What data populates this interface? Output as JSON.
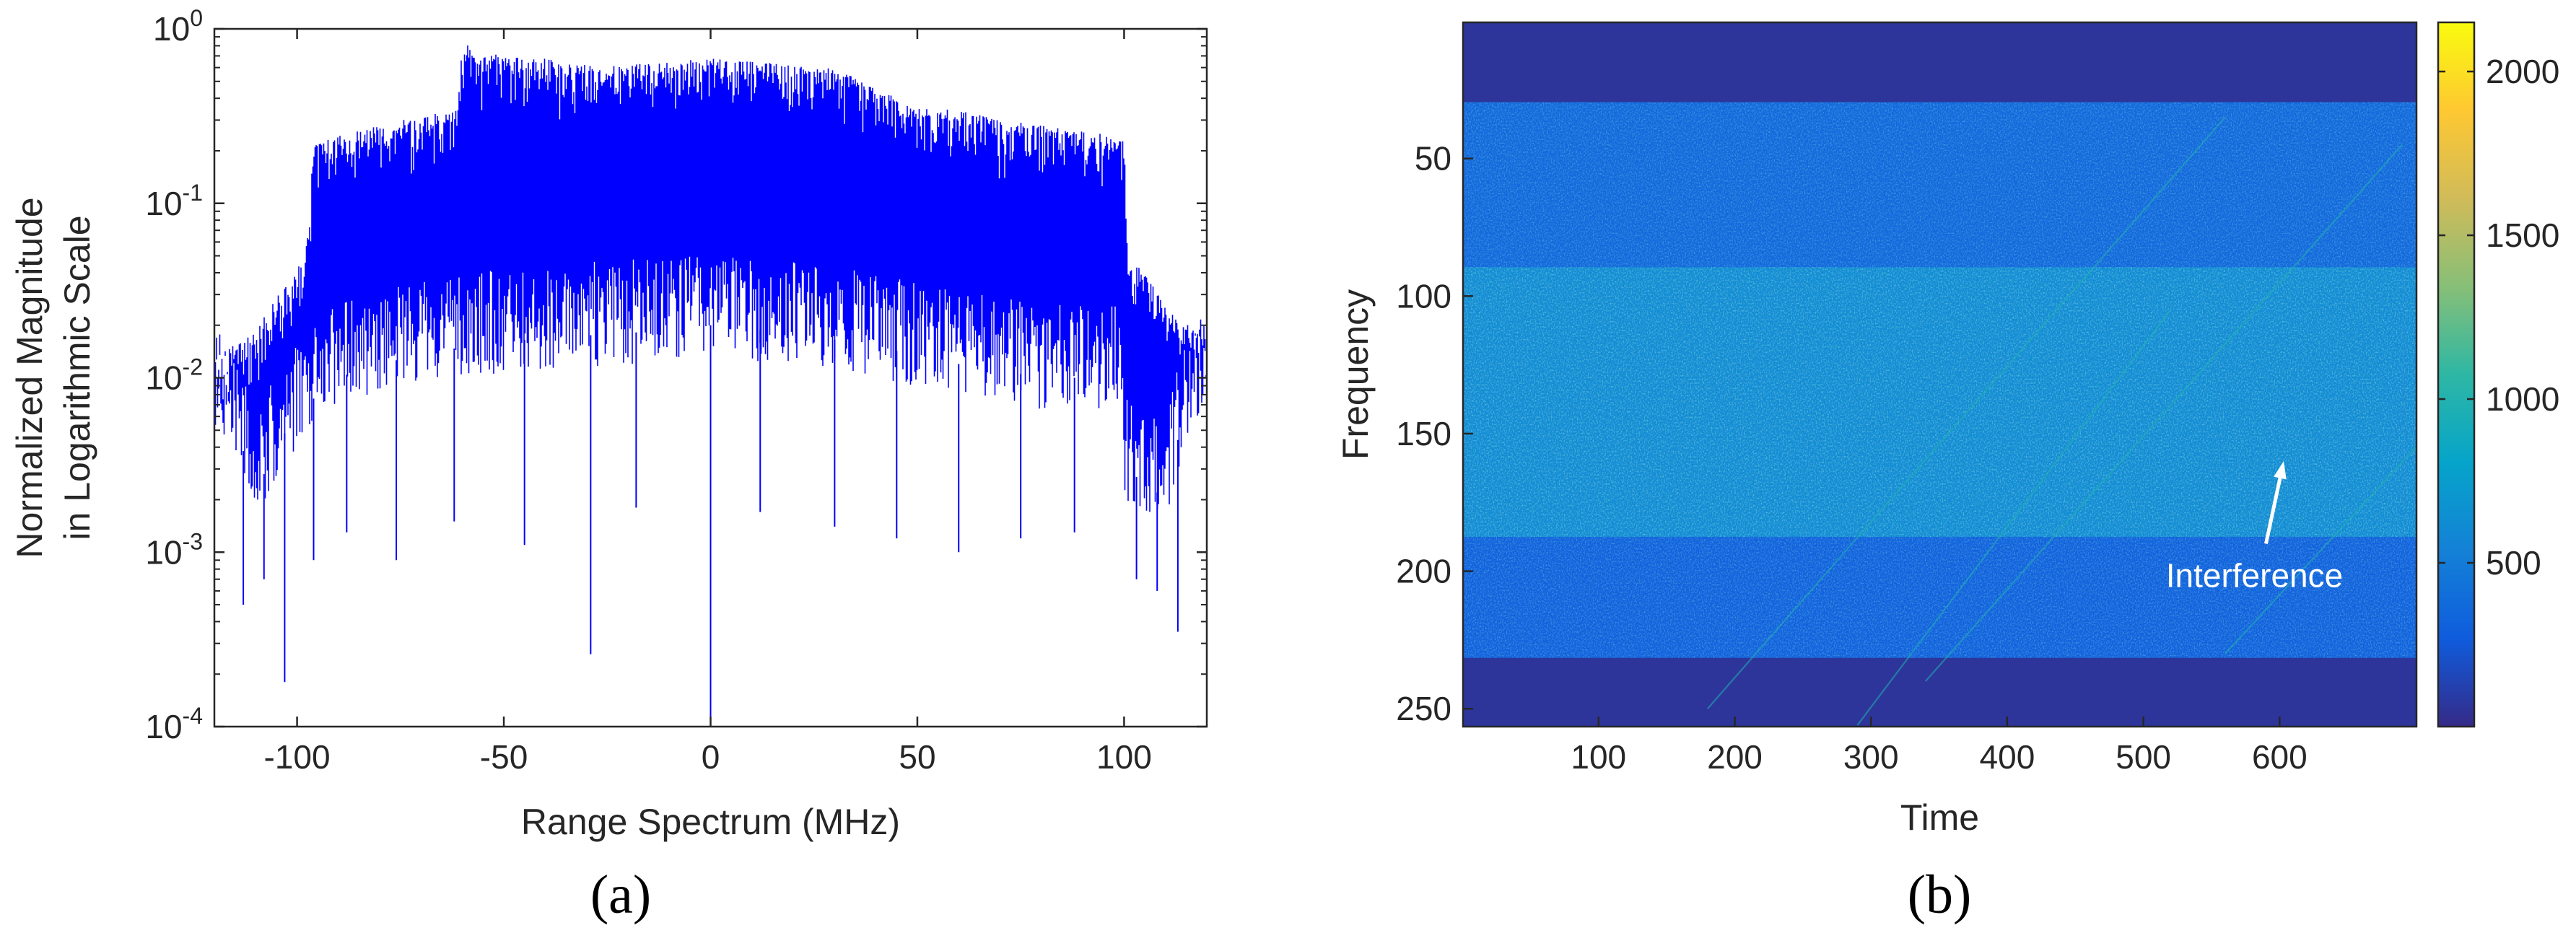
{
  "chart_data": [
    {
      "panel": "(a)",
      "type": "line",
      "xlabel": "Range Spectrum (MHz)",
      "ylabel_lines": [
        "Normalized Magnitude",
        "in Logarithmic Scale"
      ],
      "xlim": [
        -120,
        120
      ],
      "ylim": [
        0.0001,
        1
      ],
      "y_scale": "log",
      "x_ticks": [
        -100,
        -50,
        0,
        50,
        100
      ],
      "x_tick_labels": [
        "-100",
        "-50",
        "0",
        "50",
        "100"
      ],
      "y_ticks": [
        0.0001,
        0.001,
        0.01,
        0.1,
        1
      ],
      "y_tick_labels": [
        {
          "base": "10",
          "exp": "-4"
        },
        {
          "base": "10",
          "exp": "-3"
        },
        {
          "base": "10",
          "exp": "-2"
        },
        {
          "base": "10",
          "exp": "-1"
        },
        {
          "base": "10",
          "exp": "0"
        }
      ],
      "series": [
        {
          "color": "#0000ff",
          "envelope_upper": {
            "x": [
              -120,
              -110,
              -100,
              -97,
              -96,
              -80,
              -61,
              -60,
              -58,
              -50,
              -40,
              -30,
              -20,
              -10,
              0,
              10,
              20,
              30,
              40,
              50,
              60,
              70,
              80,
              90,
              99,
              100,
              101,
              110,
              120
            ],
            "y": [
              0.013,
              0.018,
              0.04,
              0.07,
              0.22,
              0.28,
              0.35,
              0.9,
              0.75,
              0.7,
              0.68,
              0.62,
              0.62,
              0.65,
              0.68,
              0.65,
              0.62,
              0.6,
              0.45,
              0.36,
              0.34,
              0.3,
              0.28,
              0.26,
              0.24,
              0.22,
              0.05,
              0.025,
              0.016
            ]
          },
          "envelope_lower": {
            "x": [
              -120,
              -110,
              -100,
              -90,
              -80,
              -60,
              -40,
              -20,
              0,
              20,
              40,
              60,
              80,
              99,
              100,
              110,
              120
            ],
            "y": [
              0.008,
              0.002,
              0.006,
              0.01,
              0.012,
              0.015,
              0.017,
              0.018,
              0.02,
              0.018,
              0.015,
              0.012,
              0.01,
              0.01,
              0.003,
              0.002,
              0.01
            ]
          },
          "deep_dips": [
            {
              "x": -113,
              "y": 0.0005
            },
            {
              "x": -108,
              "y": 0.0007
            },
            {
              "x": -103,
              "y": 0.00018
            },
            {
              "x": -96,
              "y": 0.0009
            },
            {
              "x": -88,
              "y": 0.0013
            },
            {
              "x": -76,
              "y": 0.0009
            },
            {
              "x": -62,
              "y": 0.0015
            },
            {
              "x": -45,
              "y": 0.0011
            },
            {
              "x": -29,
              "y": 0.00026
            },
            {
              "x": -18,
              "y": 0.0018
            },
            {
              "x": 0,
              "y": 0.0001
            },
            {
              "x": 12,
              "y": 0.0017
            },
            {
              "x": 30,
              "y": 0.0014
            },
            {
              "x": 45,
              "y": 0.0012
            },
            {
              "x": 60,
              "y": 0.001
            },
            {
              "x": 75,
              "y": 0.0012
            },
            {
              "x": 88,
              "y": 0.0013
            },
            {
              "x": 103,
              "y": 0.0007
            },
            {
              "x": 108,
              "y": 0.0006
            },
            {
              "x": 113,
              "y": 0.00035
            }
          ]
        }
      ]
    },
    {
      "panel": "(b)",
      "type": "heatmap",
      "xlabel": "Time",
      "ylabel": "Frequency",
      "xlim": [
        1,
        700
      ],
      "ylim": [
        1,
        256
      ],
      "y_reversed": true,
      "x_ticks": [
        100,
        200,
        300,
        400,
        500,
        600
      ],
      "x_tick_labels": [
        "100",
        "200",
        "300",
        "400",
        "500",
        "600"
      ],
      "y_ticks": [
        50,
        100,
        150,
        200,
        250
      ],
      "y_tick_labels": [
        "50",
        "100",
        "150",
        "200",
        "250"
      ],
      "colormap": "parula",
      "colormap_colors": [
        "#352a87",
        "#0f5cdd",
        "#1481d6",
        "#06a4ca",
        "#2eb7a4",
        "#87bf77",
        "#d1bb59",
        "#fec832",
        "#f9fb0e"
      ],
      "clim": [
        0,
        2150
      ],
      "colorbar_ticks": [
        500,
        1000,
        1500,
        2000
      ],
      "colorbar_tick_labels": [
        "500",
        "1000",
        "1500",
        "2000"
      ],
      "frequency_bands": [
        {
          "from": 1,
          "to": 30,
          "level": 60
        },
        {
          "from": 30,
          "to": 90,
          "level": 350
        },
        {
          "from": 90,
          "to": 188,
          "level": 620
        },
        {
          "from": 188,
          "to": 232,
          "level": 300
        },
        {
          "from": 232,
          "to": 256,
          "level": 60
        }
      ],
      "interference_traces": [
        {
          "t_start": 180,
          "f_start": 250,
          "t_end": 560,
          "f_end": 35
        },
        {
          "t_start": 290,
          "f_start": 256,
          "t_end": 520,
          "f_end": 105
        },
        {
          "t_start": 340,
          "f_start": 240,
          "t_end": 690,
          "f_end": 45
        },
        {
          "t_start": 560,
          "f_start": 230,
          "t_end": 700,
          "f_end": 155
        }
      ],
      "annotation": {
        "text": "Interference",
        "arrow_from": {
          "t": 590,
          "f": 190
        },
        "arrow_to": {
          "t": 603,
          "f": 160
        }
      }
    }
  ]
}
